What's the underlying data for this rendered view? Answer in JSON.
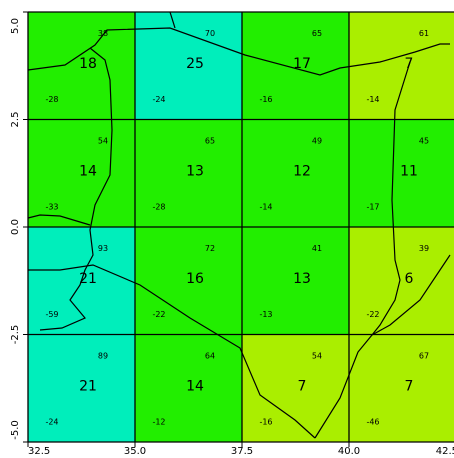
{
  "map": {
    "x_ticks": [
      "32.5",
      "35.0",
      "37.5",
      "40.0",
      "42.5"
    ],
    "y_ticks": [
      "5.0",
      "2.5",
      "0.0",
      "-2.5",
      "-5.0"
    ],
    "colors": {
      "green": "#22ee00",
      "cyan": "#00eebb",
      "yellowgreen": "#aaee00",
      "grid": "#000000",
      "border": "#000000"
    },
    "cells": [
      {
        "row": 0,
        "col": 0,
        "fill": "green",
        "value": "18",
        "top_num": "38",
        "bottom_num": "-28"
      },
      {
        "row": 0,
        "col": 1,
        "fill": "cyan",
        "value": "25",
        "top_num": "70",
        "bottom_num": "-24"
      },
      {
        "row": 0,
        "col": 2,
        "fill": "green",
        "value": "17",
        "top_num": "65",
        "bottom_num": "-16"
      },
      {
        "row": 0,
        "col": 3,
        "fill": "yellowgreen",
        "value": "7",
        "top_num": "61",
        "bottom_num": "-14"
      },
      {
        "row": 1,
        "col": 0,
        "fill": "green",
        "value": "14",
        "top_num": "54",
        "bottom_num": "-33"
      },
      {
        "row": 1,
        "col": 1,
        "fill": "green",
        "value": "13",
        "top_num": "65",
        "bottom_num": "-28"
      },
      {
        "row": 1,
        "col": 2,
        "fill": "green",
        "value": "12",
        "top_num": "49",
        "bottom_num": "-14"
      },
      {
        "row": 1,
        "col": 3,
        "fill": "green",
        "value": "11",
        "top_num": "45",
        "bottom_num": "-17"
      },
      {
        "row": 2,
        "col": 0,
        "fill": "cyan",
        "value": "21",
        "top_num": "93",
        "bottom_num": "-59"
      },
      {
        "row": 2,
        "col": 1,
        "fill": "green",
        "value": "16",
        "top_num": "72",
        "bottom_num": "-22"
      },
      {
        "row": 2,
        "col": 2,
        "fill": "green",
        "value": "13",
        "top_num": "41",
        "bottom_num": "-13"
      },
      {
        "row": 2,
        "col": 3,
        "fill": "yellowgreen",
        "value": "6",
        "top_num": "39",
        "bottom_num": "-22"
      },
      {
        "row": 3,
        "col": 0,
        "fill": "cyan",
        "value": "21",
        "top_num": "89",
        "bottom_num": "-24"
      },
      {
        "row": 3,
        "col": 1,
        "fill": "green",
        "value": "14",
        "top_num": "64",
        "bottom_num": "-12"
      },
      {
        "row": 3,
        "col": 2,
        "fill": "yellowgreen",
        "value": "7",
        "top_num": "54",
        "bottom_num": "-16"
      },
      {
        "row": 3,
        "col": 3,
        "fill": "yellowgreen",
        "value": "7",
        "top_num": "67",
        "bottom_num": "-46"
      }
    ]
  }
}
